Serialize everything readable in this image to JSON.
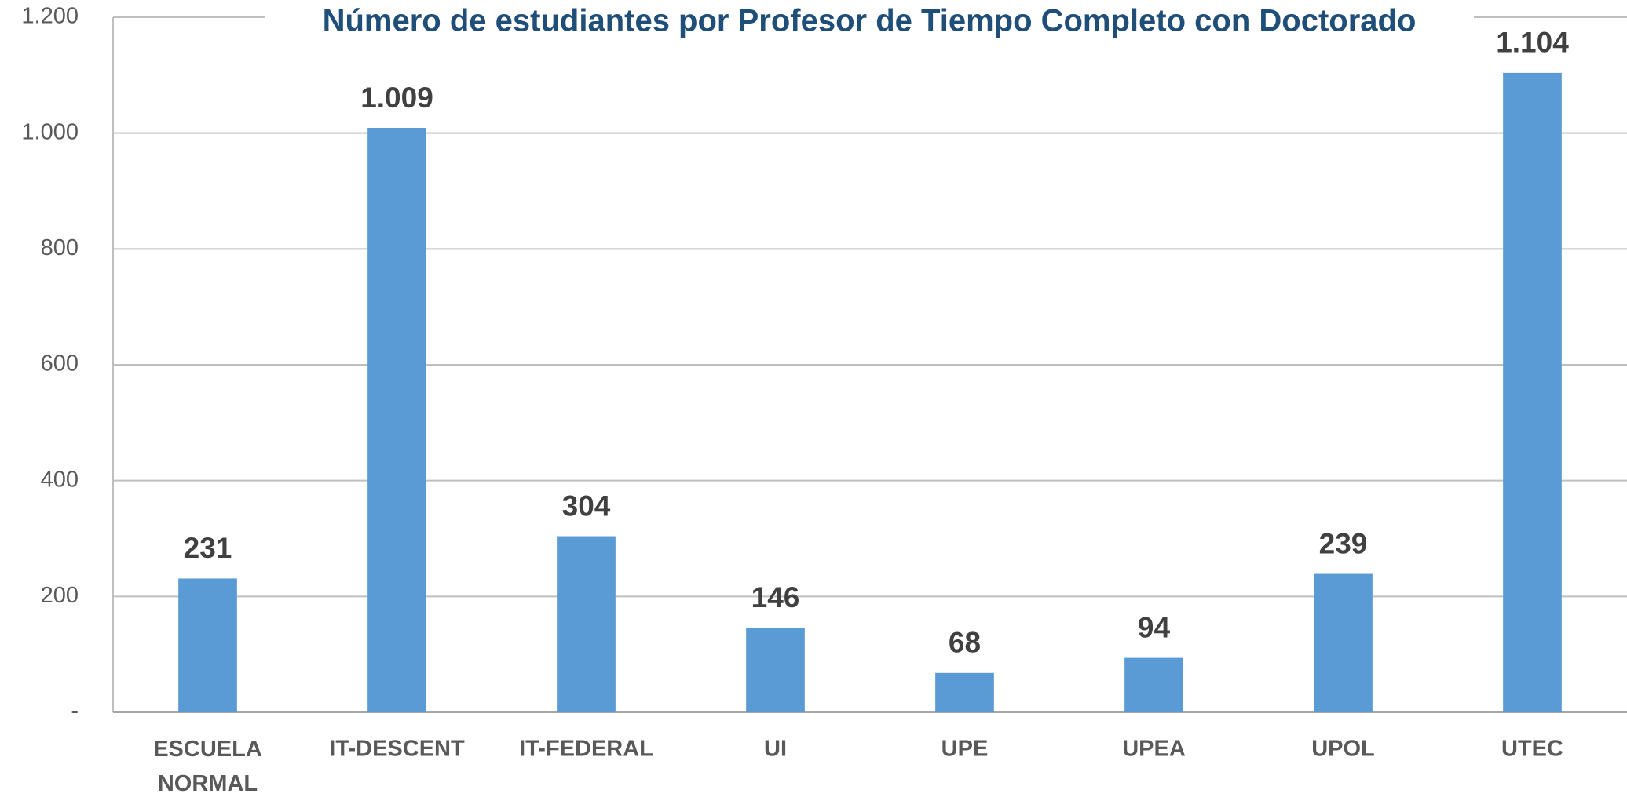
{
  "chart_data": {
    "type": "bar",
    "title": "Número de estudiantes por Profesor de Tiempo Completo con Doctorado",
    "categories": [
      "ESCUELA NORMAL",
      "IT-DESCENT",
      "IT-FEDERAL",
      "UI",
      "UPE",
      "UPEA",
      "UPOL",
      "UTEC"
    ],
    "values": [
      231,
      1009,
      304,
      146,
      68,
      94,
      239,
      1104
    ],
    "value_labels": [
      "231",
      "1.009",
      "304",
      "146",
      "68",
      "94",
      "239",
      "1.104"
    ],
    "color": "#5b9bd5",
    "ylim": [
      0,
      1200
    ],
    "yticks": [
      {
        "value": 0,
        "label": "-"
      },
      200,
      400,
      600,
      800,
      {
        "value": 1000,
        "label": "1.000"
      },
      {
        "value": 1200,
        "label": "1.200"
      }
    ],
    "grid": true
  }
}
